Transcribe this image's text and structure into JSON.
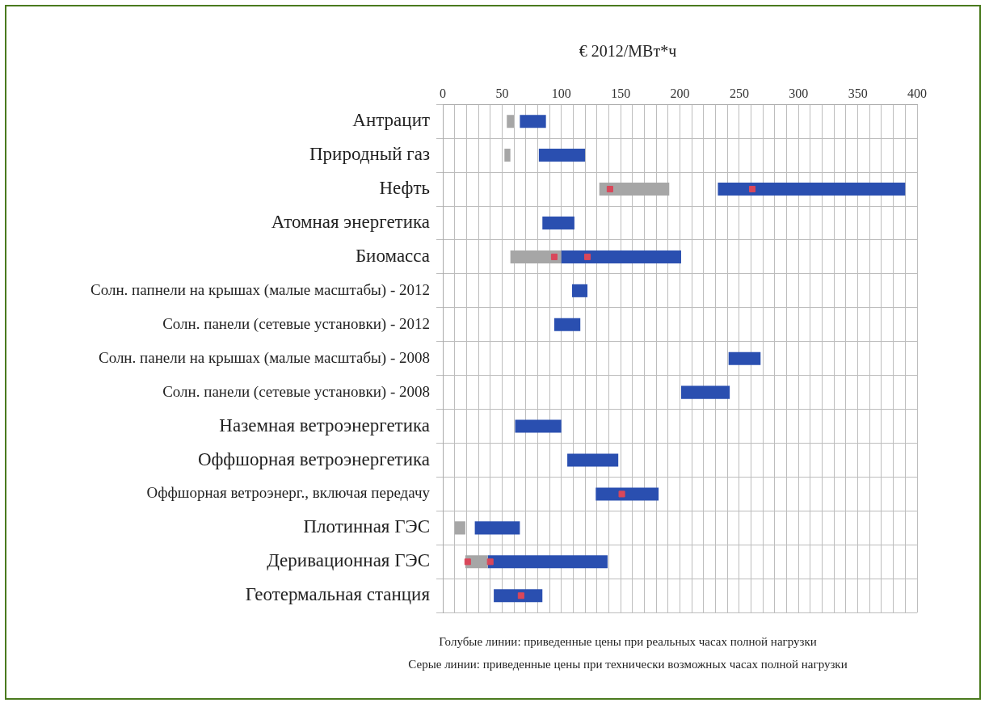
{
  "chart_data": {
    "type": "bar",
    "orientation": "horizontal",
    "xlabel": "€ 2012/МВт*ч",
    "categories": [
      "Антрацит",
      "Природный газ",
      "Нефть",
      "Атомная энергетика",
      "Биомасса",
      "Солн. папнели на крышах (малые масштабы) - 2012",
      "Солн. панели (сетевые установки) - 2012",
      "Солн. панели на крышах (малые масштабы) - 2008",
      "Солн. панели (сетевые установки) - 2008",
      "Наземная ветроэнергетика",
      "Оффшорная ветроэнергетика",
      "Оффшорная ветроэнерг., включая передачу",
      "Плотинная ГЭС",
      "Деривационная ГЭС",
      "Геотермальная станция"
    ],
    "series": [
      {
        "color": "#a6a6a6",
        "base": [
          54,
          52,
          132,
          null,
          57,
          null,
          null,
          null,
          null,
          null,
          null,
          null,
          10,
          19,
          null
        ],
        "values": [
          6,
          5,
          59,
          null,
          43,
          null,
          null,
          null,
          null,
          null,
          null,
          null,
          9,
          19,
          null
        ]
      },
      {
        "color": "#2a4fb0",
        "base": [
          65,
          81,
          232,
          84,
          79,
          109,
          94,
          241,
          201,
          61,
          105,
          129,
          27,
          38,
          43
        ],
        "values": [
          22,
          39,
          158,
          27,
          122,
          13,
          22,
          27,
          41,
          39,
          43,
          53,
          38,
          101,
          41
        ]
      },
      {
        "type": "scatter",
        "color": "#d9475a",
        "values": [
          null,
          null,
          141,
          null,
          94,
          null,
          null,
          null,
          null,
          null,
          null,
          null,
          null,
          21,
          null
        ]
      },
      {
        "type": "scatter",
        "color": "#d9475a",
        "values": [
          null,
          null,
          261,
          null,
          122,
          null,
          null,
          null,
          null,
          null,
          null,
          151,
          null,
          40,
          66
        ]
      }
    ],
    "xlim": [
      0,
      400
    ],
    "xticks": [
      0,
      {
        "value": 10,
        "label": null
      },
      {
        "value": 20,
        "label": null
      },
      {
        "value": 30,
        "label": null
      },
      {
        "value": 40,
        "label": null
      },
      50,
      {
        "value": 60,
        "label": null
      },
      {
        "value": 70,
        "label": null
      },
      {
        "value": 80,
        "label": null
      },
      {
        "value": 90,
        "label": null
      },
      100,
      {
        "value": 110,
        "label": null
      },
      {
        "value": 120,
        "label": null
      },
      {
        "value": 130,
        "label": null
      },
      {
        "value": 140,
        "label": null
      },
      150,
      {
        "value": 160,
        "label": null
      },
      {
        "value": 170,
        "label": null
      },
      {
        "value": 180,
        "label": null
      },
      {
        "value": 190,
        "label": null
      },
      200,
      {
        "value": 210,
        "label": null
      },
      {
        "value": 220,
        "label": null
      },
      {
        "value": 230,
        "label": null
      },
      {
        "value": 240,
        "label": null
      },
      250,
      {
        "value": 260,
        "label": null
      },
      {
        "value": 270,
        "label": null
      },
      {
        "value": 280,
        "label": null
      },
      {
        "value": 290,
        "label": null
      },
      300,
      {
        "value": 310,
        "label": null
      },
      {
        "value": 320,
        "label": null
      },
      {
        "value": 330,
        "label": null
      },
      {
        "value": 340,
        "label": null
      },
      350,
      {
        "value": 360,
        "label": null
      },
      {
        "value": 370,
        "label": null
      },
      {
        "value": 380,
        "label": null
      },
      {
        "value": 390,
        "label": null
      },
      400
    ],
    "grid": true,
    "marker": "square",
    "annotations": [
      "Голубые линии: приведенные цены при реальных часах полной нагрузки",
      "Серые линии: приведенные цены при технически возможных часах полной нагрузки"
    ]
  }
}
